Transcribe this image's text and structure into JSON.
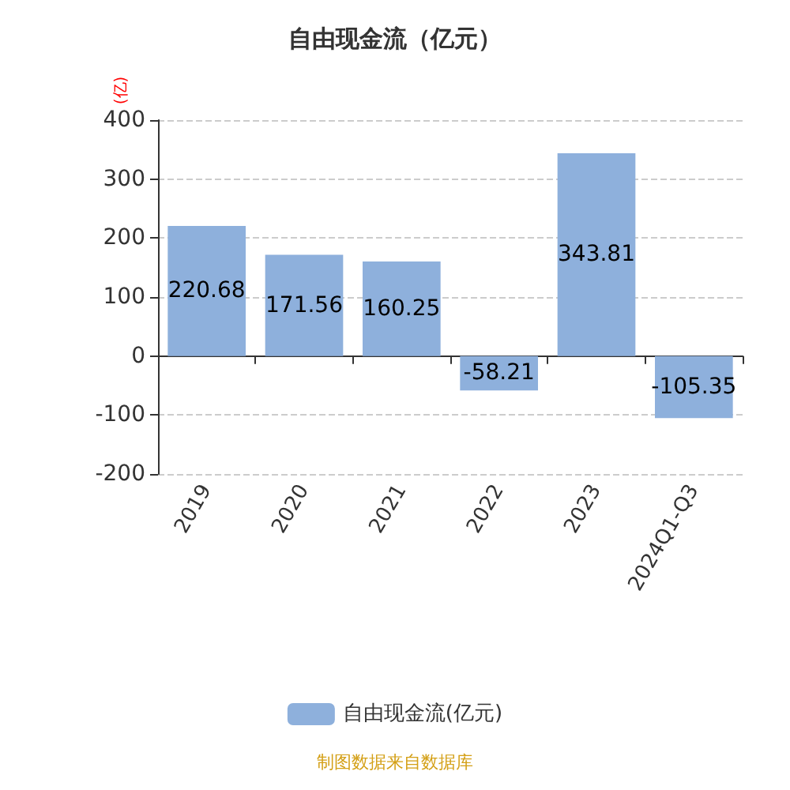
{
  "chart_data": {
    "type": "bar",
    "title": "自由现金流（亿元）",
    "ylabel": "(亿)",
    "categories": [
      "2019",
      "2020",
      "2021",
      "2022",
      "2023",
      "2024Q1-Q3"
    ],
    "series": [
      {
        "name": "自由现金流(亿元)",
        "color": "#8eb0dc",
        "values": [
          220.68,
          171.56,
          160.25,
          -58.21,
          343.81,
          -105.35
        ]
      }
    ],
    "ylim": [
      -200,
      400
    ],
    "yticks": [
      -200,
      -100,
      0,
      100,
      200,
      300,
      400
    ],
    "grid": "y",
    "legend": "bottom",
    "data_labels": true,
    "annotations": [
      "制图数据来自数据库"
    ]
  }
}
